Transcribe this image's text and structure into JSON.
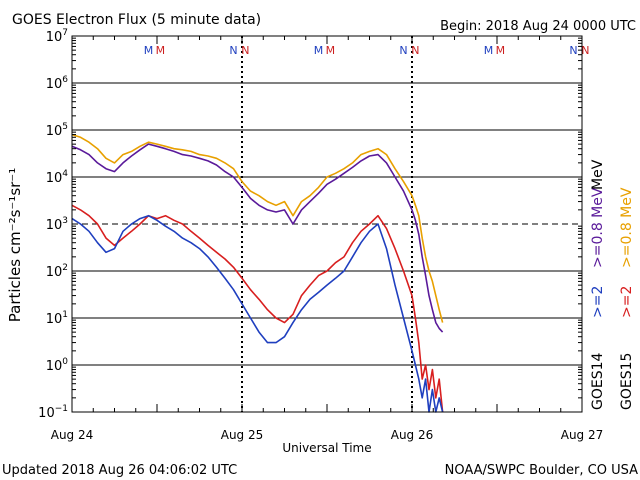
{
  "chart_data": {
    "type": "line",
    "title": "GOES Electron Flux (5 minute data)",
    "begin_label": "Begin: 2018 Aug 24 0000 UTC",
    "xlabel": "Universal Time",
    "ylabel": "Particles cm⁻²s⁻¹sr⁻¹",
    "y_scale": "log",
    "ylim_exp": [
      -1,
      7
    ],
    "y_tick_exponents": [
      "7",
      "6",
      "5",
      "4",
      "3",
      "2",
      "1",
      "0",
      "−1"
    ],
    "x_unit": "days since 2018 Aug 24 00:00 UTC",
    "xlim": [
      0,
      3
    ],
    "x_tick_labels": [
      "Aug 24",
      "Aug 25",
      "Aug 26",
      "Aug 27"
    ],
    "dashed_level": 1000,
    "day_boundaries": [
      1,
      2
    ],
    "markers": [
      {
        "label": "M",
        "x": 0.45,
        "color": "#1f3fbf"
      },
      {
        "label": "M",
        "x": 0.52,
        "color": "#cc1f1f"
      },
      {
        "label": "N",
        "x": 0.95,
        "color": "#1f3fbf"
      },
      {
        "label": "N",
        "x": 1.02,
        "color": "#cc1f1f"
      },
      {
        "label": "M",
        "x": 1.45,
        "color": "#1f3fbf"
      },
      {
        "label": "M",
        "x": 1.52,
        "color": "#cc1f1f"
      },
      {
        "label": "N",
        "x": 1.95,
        "color": "#1f3fbf"
      },
      {
        "label": "N",
        "x": 2.02,
        "color": "#cc1f1f"
      },
      {
        "label": "M",
        "x": 2.45,
        "color": "#1f3fbf"
      },
      {
        "label": "M",
        "x": 2.52,
        "color": "#cc1f1f"
      },
      {
        "label": "N",
        "x": 2.95,
        "color": "#1f3fbf"
      },
      {
        "label": "N",
        "x": 3.02,
        "color": "#cc1f1f"
      }
    ],
    "series": [
      {
        "name": "GOES15 >=0.8 MeV",
        "color": "#e8a000",
        "x": [
          0,
          0.05,
          0.1,
          0.15,
          0.2,
          0.25,
          0.3,
          0.35,
          0.4,
          0.45,
          0.5,
          0.55,
          0.6,
          0.65,
          0.7,
          0.75,
          0.8,
          0.85,
          0.9,
          0.95,
          1.0,
          1.05,
          1.1,
          1.15,
          1.2,
          1.25,
          1.3,
          1.35,
          1.4,
          1.45,
          1.5,
          1.55,
          1.6,
          1.65,
          1.7,
          1.75,
          1.8,
          1.85,
          1.9,
          1.95,
          2.0,
          2.02,
          2.04,
          2.06,
          2.08,
          2.1,
          2.12,
          2.14,
          2.16,
          2.18
        ],
        "values": [
          80000,
          70000,
          55000,
          40000,
          25000,
          20000,
          30000,
          35000,
          45000,
          55000,
          50000,
          45000,
          40000,
          38000,
          35000,
          30000,
          28000,
          25000,
          20000,
          15000,
          8000,
          5000,
          4000,
          3000,
          2500,
          3000,
          1500,
          3000,
          4000,
          6000,
          10000,
          12000,
          15000,
          20000,
          30000,
          35000,
          40000,
          30000,
          15000,
          8000,
          4000,
          2500,
          1500,
          500,
          200,
          100,
          60,
          30,
          15,
          8
        ]
      },
      {
        "name": "GOES14 >=0.8 MeV",
        "color": "#5a1a9a",
        "x": [
          0,
          0.05,
          0.1,
          0.15,
          0.2,
          0.25,
          0.3,
          0.35,
          0.4,
          0.45,
          0.5,
          0.55,
          0.6,
          0.65,
          0.7,
          0.75,
          0.8,
          0.85,
          0.9,
          0.95,
          1.0,
          1.05,
          1.1,
          1.15,
          1.2,
          1.25,
          1.3,
          1.35,
          1.4,
          1.45,
          1.5,
          1.55,
          1.6,
          1.65,
          1.7,
          1.75,
          1.8,
          1.85,
          1.9,
          1.95,
          2.0,
          2.02,
          2.04,
          2.06,
          2.08,
          2.1,
          2.12,
          2.14,
          2.16,
          2.18
        ],
        "values": [
          45000,
          38000,
          30000,
          20000,
          15000,
          13000,
          20000,
          28000,
          38000,
          50000,
          45000,
          40000,
          35000,
          30000,
          28000,
          25000,
          22000,
          18000,
          13000,
          10000,
          6000,
          3500,
          2500,
          2000,
          1800,
          2000,
          1000,
          2000,
          3000,
          4500,
          7000,
          9000,
          12000,
          16000,
          22000,
          28000,
          30000,
          20000,
          10000,
          5000,
          2000,
          1200,
          600,
          200,
          80,
          30,
          15,
          8,
          6,
          5
        ]
      },
      {
        "name": "GOES15 >=2 MeV",
        "color": "#d81f1f",
        "x": [
          0,
          0.05,
          0.1,
          0.15,
          0.2,
          0.25,
          0.3,
          0.35,
          0.4,
          0.45,
          0.5,
          0.55,
          0.6,
          0.65,
          0.7,
          0.75,
          0.8,
          0.85,
          0.9,
          0.95,
          1.0,
          1.05,
          1.1,
          1.15,
          1.2,
          1.25,
          1.3,
          1.35,
          1.4,
          1.45,
          1.5,
          1.55,
          1.6,
          1.65,
          1.7,
          1.75,
          1.8,
          1.85,
          1.9,
          1.95,
          2.0,
          2.02,
          2.04,
          2.06,
          2.08,
          2.1,
          2.12,
          2.14,
          2.16,
          2.18
        ],
        "values": [
          2500,
          2000,
          1500,
          1000,
          500,
          350,
          500,
          700,
          1000,
          1500,
          1300,
          1500,
          1200,
          1000,
          700,
          500,
          350,
          250,
          180,
          120,
          70,
          40,
          25,
          15,
          10,
          8,
          12,
          30,
          50,
          80,
          100,
          150,
          200,
          400,
          700,
          1000,
          1500,
          800,
          300,
          100,
          30,
          10,
          3,
          0.5,
          1,
          0.3,
          0.8,
          0.2,
          0.5,
          0.1
        ]
      },
      {
        "name": "GOES14 >=2 MeV",
        "color": "#1f3fbf",
        "x": [
          0,
          0.05,
          0.1,
          0.15,
          0.2,
          0.25,
          0.3,
          0.35,
          0.4,
          0.45,
          0.5,
          0.55,
          0.6,
          0.65,
          0.7,
          0.75,
          0.8,
          0.85,
          0.9,
          0.95,
          1.0,
          1.05,
          1.1,
          1.15,
          1.2,
          1.25,
          1.3,
          1.35,
          1.4,
          1.45,
          1.5,
          1.55,
          1.6,
          1.65,
          1.7,
          1.75,
          1.8,
          1.85,
          1.9,
          1.95,
          2.0,
          2.02,
          2.04,
          2.06,
          2.08,
          2.1,
          2.12,
          2.14,
          2.16,
          2.18
        ],
        "values": [
          1300,
          1000,
          700,
          400,
          250,
          300,
          700,
          1000,
          1300,
          1500,
          1200,
          900,
          700,
          500,
          400,
          300,
          200,
          120,
          70,
          40,
          20,
          10,
          5,
          3,
          3,
          4,
          8,
          15,
          25,
          35,
          50,
          70,
          100,
          200,
          400,
          700,
          1000,
          300,
          50,
          10,
          2,
          1,
          0.5,
          0.2,
          0.5,
          0.1,
          0.3,
          0.1,
          0.2,
          0.1
        ]
      }
    ],
    "legend": [
      {
        "text": ">=0.8 MeV",
        "color": "#e8a000"
      },
      {
        "text": ">=0.8 MeV",
        "color": "#5a1a9a"
      },
      {
        "text": ">=2",
        "color": "#d81f1f"
      },
      {
        "text": ">=2",
        "color": "#1f3fbf"
      },
      {
        "text": "GOES15",
        "color": "#000000"
      },
      {
        "text": "GOES14",
        "color": "#000000"
      },
      {
        "text": "MeV",
        "color": "#000000"
      }
    ]
  },
  "footer": {
    "updated": "Updated 2018 Aug 26 04:06:02 UTC",
    "source": "NOAA/SWPC Boulder, CO USA"
  }
}
